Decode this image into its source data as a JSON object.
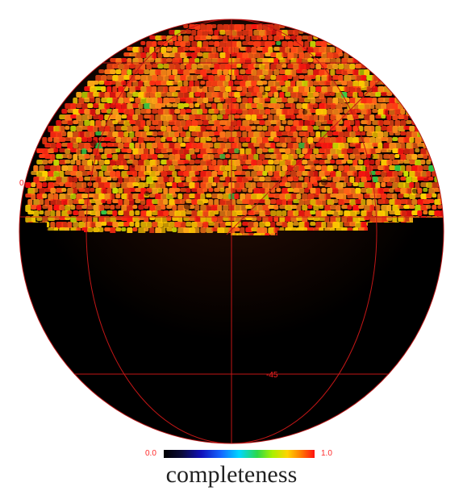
{
  "plot": {
    "dec_label_positive": "0",
    "dec_label_negative": "-45"
  },
  "colorbar": {
    "min_label": "0.0",
    "max_label": "1.0",
    "title": "completeness"
  },
  "colors": {
    "background": "#000000",
    "grid": "#c21616",
    "label": "#ff2222",
    "low_completeness": "#ffd400",
    "high_completeness": "#ff1111",
    "accent_green": "#2bd84a"
  }
}
